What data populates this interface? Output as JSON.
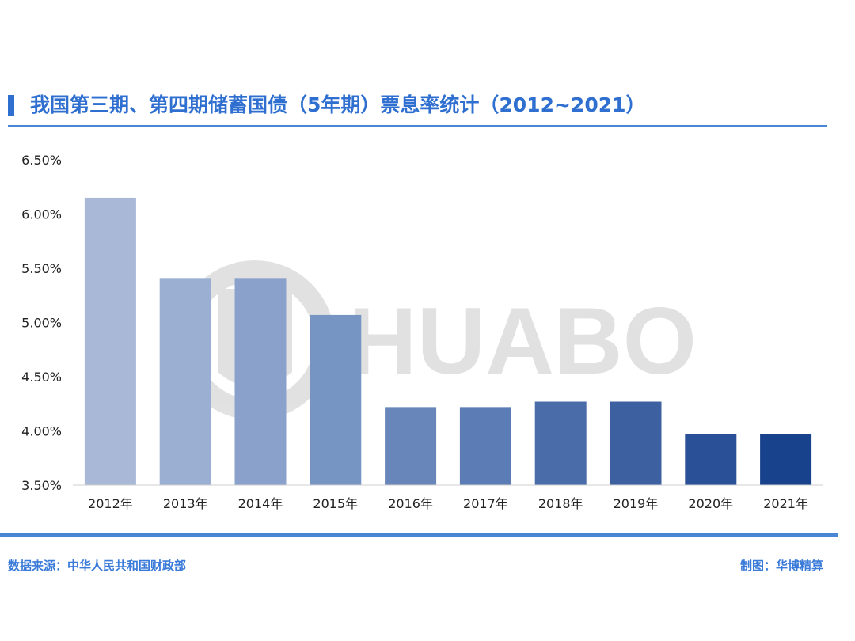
{
  "header": {
    "title": "我国第三期、第四期储蓄国债（5年期）票息率统计（2012~2021）"
  },
  "footer": {
    "source": "数据来源：中华人民共和国财政部",
    "credit": "制图：华博精算"
  },
  "watermark": {
    "text": "HUABO"
  },
  "chart_data": {
    "type": "bar",
    "categories": [
      "2012年",
      "2013年",
      "2014年",
      "2015年",
      "2016年",
      "2017年",
      "2018年",
      "2019年",
      "2020年",
      "2021年"
    ],
    "values": [
      6.15,
      5.41,
      5.41,
      5.07,
      4.22,
      4.22,
      4.27,
      4.27,
      3.97,
      3.97
    ],
    "ylim": [
      3.5,
      6.5
    ],
    "yticks": [
      "3.50%",
      "4.00%",
      "4.50%",
      "5.00%",
      "5.50%",
      "6.00%",
      "6.50%"
    ],
    "ytick_values": [
      3.5,
      4.0,
      4.5,
      5.0,
      5.5,
      6.0,
      6.5
    ],
    "bar_colors": [
      "#a8b8d6",
      "#9aafd2",
      "#8aa2cb",
      "#7795c3",
      "#6886ba",
      "#5b7cb4",
      "#4a6ca8",
      "#3d60a0",
      "#2a5098",
      "#18428b"
    ],
    "grid": false,
    "legend": "none"
  }
}
